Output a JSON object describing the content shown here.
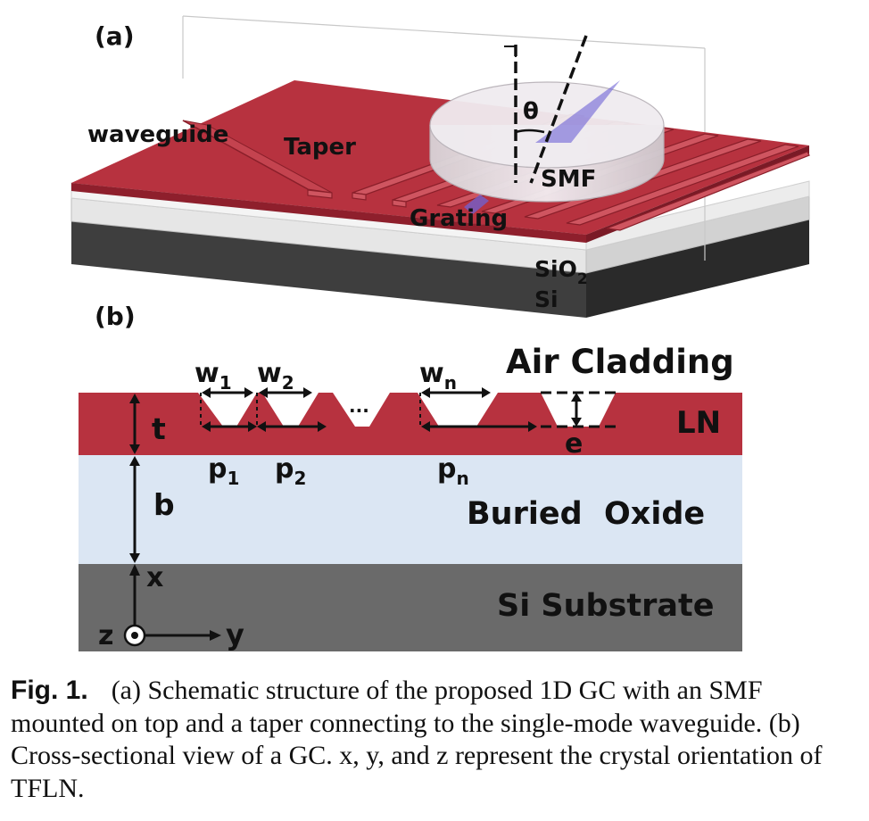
{
  "panel_a": {
    "label": "(a)",
    "waveguide": "waveguide",
    "taper": "Taper",
    "theta": "θ",
    "smf": "SMF",
    "grating": "Grating",
    "sio2_main": "SiO",
    "sio2_sub": "2",
    "si": "Si"
  },
  "panel_b": {
    "label": "(b)",
    "w1_main": "w",
    "w1_sub": "1",
    "w2_main": "w",
    "w2_sub": "2",
    "wn_main": "w",
    "wn_sub": "n",
    "dots": "...",
    "air_cladding": "Air Cladding",
    "ln": "LN",
    "t": "t",
    "e": "e",
    "p1_main": "p",
    "p1_sub": "1",
    "p2_main": "p",
    "p2_sub": "2",
    "pn_main": "p",
    "pn_sub": "n",
    "b": "b",
    "buried_oxide": "Buried  Oxide",
    "x": "x",
    "si_substrate": "Si Substrate",
    "z": "z",
    "y": "y"
  },
  "caption": {
    "label": "Fig. 1.",
    "text": "(a) Schematic structure of the proposed 1D GC with an SMF mounted on top and a taper connecting to the single-mode waveguide. (b) Cross-sectional view of a GC. x, y, and z represent the crystal orientation of TFLN."
  },
  "colors": {
    "ln_red": "#b7323f",
    "oxide_blue": "#dbe6f3",
    "substrate_gray": "#6a6a6a",
    "grating_purple": "#6e63d6"
  }
}
